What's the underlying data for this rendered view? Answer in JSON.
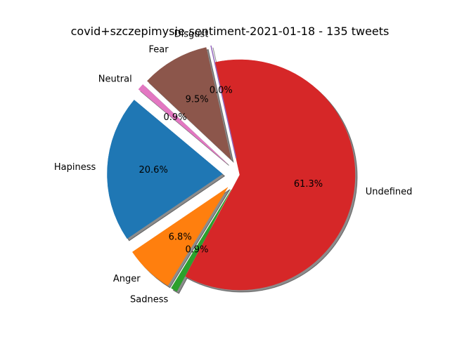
{
  "chart_data": {
    "type": "pie",
    "title": "covid+szczepimysie-sentiment-2021-01-18 - 135 tweets",
    "slices": [
      {
        "label": "Hapiness",
        "percent": 20.6,
        "color": "#1f77b4",
        "exploded": true
      },
      {
        "label": "Anger",
        "percent": 6.8,
        "color": "#ff7f0e",
        "exploded": true
      },
      {
        "label": "Sadness",
        "percent": 0.9,
        "color": "#2ca02c",
        "exploded": true
      },
      {
        "label": "Undefined",
        "percent": 61.3,
        "color": "#d62728",
        "exploded": false
      },
      {
        "label": "Disgust",
        "percent": 0.0,
        "color": "#9467bd",
        "exploded": true
      },
      {
        "label": "Fear",
        "percent": 9.5,
        "color": "#8c564b",
        "exploded": true
      },
      {
        "label": "Neutral",
        "percent": 0.9,
        "color": "#e377c2",
        "exploded": true
      }
    ],
    "percent_labels": [
      "20.6%",
      "6.8%",
      "0.9%",
      "61.3%",
      "0.0%",
      "9.5%",
      "0.9%"
    ],
    "start_angle_deg": 140,
    "shadow": true,
    "legend": "none"
  }
}
